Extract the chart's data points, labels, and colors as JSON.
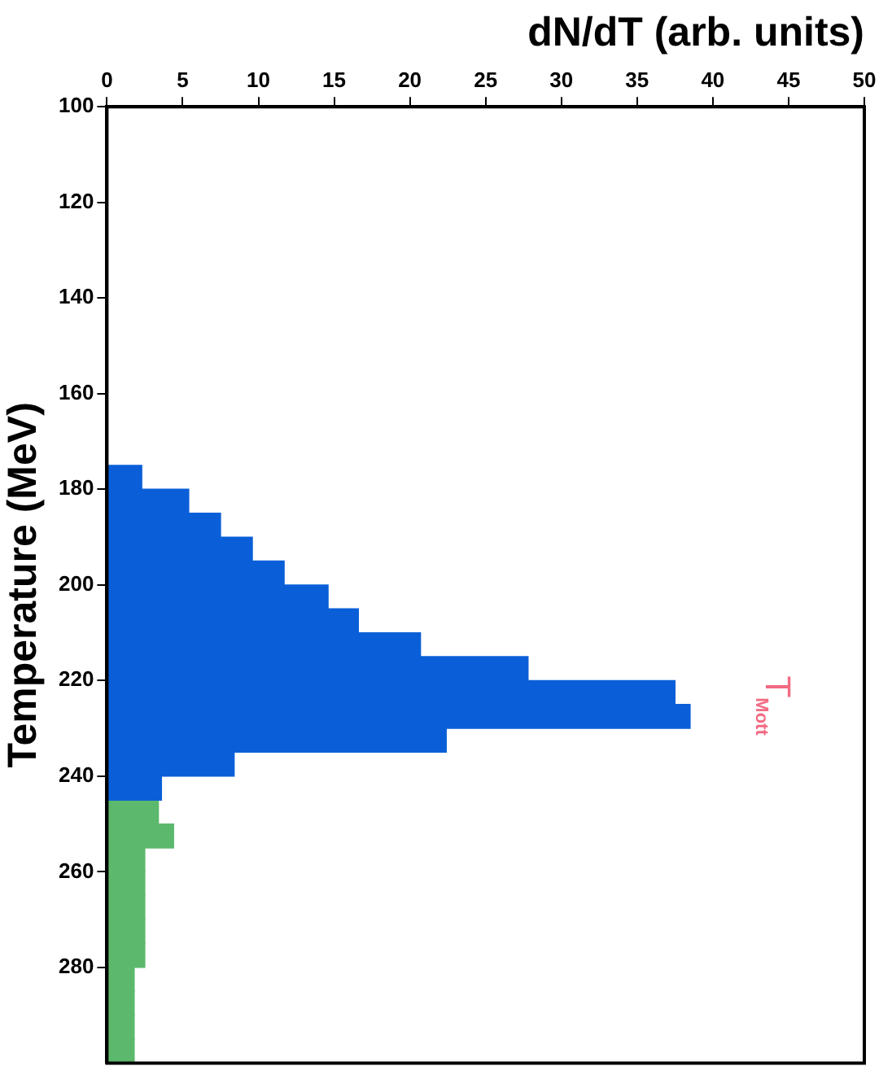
{
  "chart_data": {
    "type": "histogram",
    "orientation": "horizontal",
    "xlabel": "dN/dT (arb. units)",
    "ylabel": "Temperature (MeV)",
    "bins": [
      175,
      180,
      185,
      190,
      195,
      200,
      205,
      210,
      215,
      220,
      225,
      230,
      235,
      240,
      245,
      250,
      255,
      260,
      265,
      270,
      275,
      280,
      285,
      290,
      295,
      300
    ],
    "series": [
      {
        "color": "#0a5fd8",
        "values": [
          2.3,
          5.4,
          7.5,
          9.6,
          11.7,
          14.6,
          16.6,
          20.7,
          27.8,
          37.5,
          38.5,
          22.4,
          8.4,
          3.6,
          null,
          null,
          null,
          null,
          null,
          null,
          null,
          null,
          null,
          null,
          null
        ]
      },
      {
        "color": "#5cb86c",
        "values": [
          null,
          null,
          null,
          null,
          null,
          null,
          null,
          null,
          null,
          null,
          null,
          null,
          null,
          null,
          3.4,
          4.4,
          2.5,
          2.5,
          2.5,
          2.5,
          2.5,
          1.8,
          1.8,
          1.8,
          1.8
        ]
      }
    ],
    "xlim": [
      0,
      50
    ],
    "xticks": [
      0,
      5,
      10,
      15,
      20,
      25,
      30,
      35,
      40,
      45,
      50
    ],
    "ylim": [
      300,
      100
    ],
    "yticks": [
      100,
      120,
      140,
      160,
      180,
      200,
      220,
      240,
      260,
      280
    ],
    "annotations": [
      "T$_{Mott}$"
    ],
    "grid": false,
    "legend": false
  }
}
